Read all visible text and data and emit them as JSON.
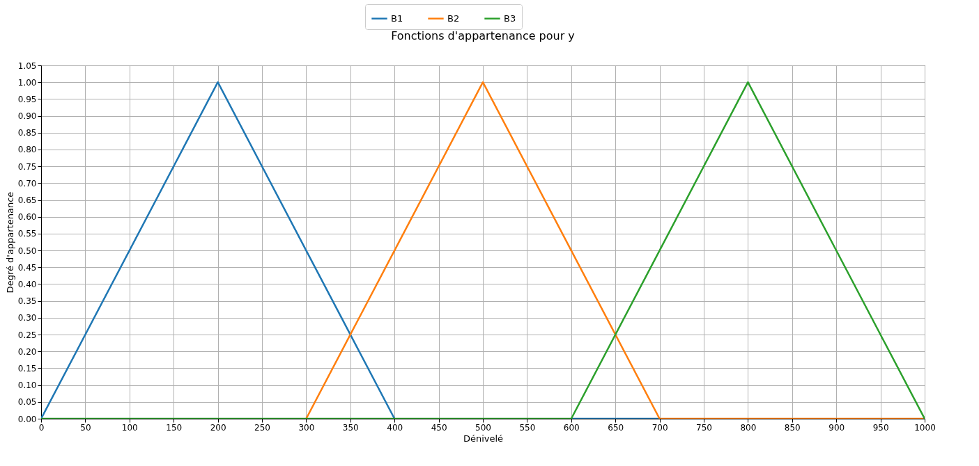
{
  "chart_data": {
    "type": "line",
    "title": "Fonctions d'appartenance pour y",
    "xlabel": "Dénivelé",
    "ylabel": "Degré d'appartenance",
    "x": [
      0,
      200,
      300,
      400,
      500,
      600,
      700,
      800,
      1000
    ],
    "series": [
      {
        "name": "B1",
        "color": "#1f77b4",
        "values": [
          0,
          1,
          0.5,
          0,
          null,
          0,
          0,
          null,
          null
        ]
      },
      {
        "name": "B2",
        "color": "#ff7f0e",
        "values": [
          null,
          null,
          0,
          0.5,
          1,
          0.5,
          0,
          0,
          0
        ]
      },
      {
        "name": "B3",
        "color": "#2ca02c",
        "values": [
          0,
          0,
          0,
          0,
          0,
          0,
          0.5,
          1,
          0
        ]
      }
    ],
    "xlim": [
      0,
      1000
    ],
    "xticks": [
      0,
      50,
      100,
      150,
      200,
      250,
      300,
      350,
      400,
      450,
      500,
      550,
      600,
      650,
      700,
      750,
      800,
      850,
      900,
      950,
      1000
    ],
    "ylim": [
      0,
      1.05
    ],
    "yticks": [
      {
        "value": 0,
        "label": "0.00"
      },
      {
        "value": 0.05,
        "label": "0.05"
      },
      {
        "value": 0.1,
        "label": "0.10"
      },
      {
        "value": 0.15,
        "label": "0.15"
      },
      {
        "value": 0.2,
        "label": "0.20"
      },
      {
        "value": 0.25,
        "label": "0.25"
      },
      {
        "value": 0.3,
        "label": "0.30"
      },
      {
        "value": 0.35,
        "label": "0.35"
      },
      {
        "value": 0.4,
        "label": "0.40"
      },
      {
        "value": 0.45,
        "label": "0.45"
      },
      {
        "value": 0.5,
        "label": "0.50"
      },
      {
        "value": 0.55,
        "label": "0.55"
      },
      {
        "value": 0.6,
        "label": "0.60"
      },
      {
        "value": 0.65,
        "label": "0.65"
      },
      {
        "value": 0.7,
        "label": "0.70"
      },
      {
        "value": 0.75,
        "label": "0.75"
      },
      {
        "value": 0.8,
        "label": "0.80"
      },
      {
        "value": 0.85,
        "label": "0.85"
      },
      {
        "value": 0.9,
        "label": "0.90"
      },
      {
        "value": 0.95,
        "label": "0.95"
      },
      {
        "value": 1,
        "label": "1.00"
      },
      {
        "value": 1.05,
        "label": "1.05"
      }
    ],
    "grid": true,
    "legend": "top",
    "marker": "none",
    "line_style": "solid"
  }
}
